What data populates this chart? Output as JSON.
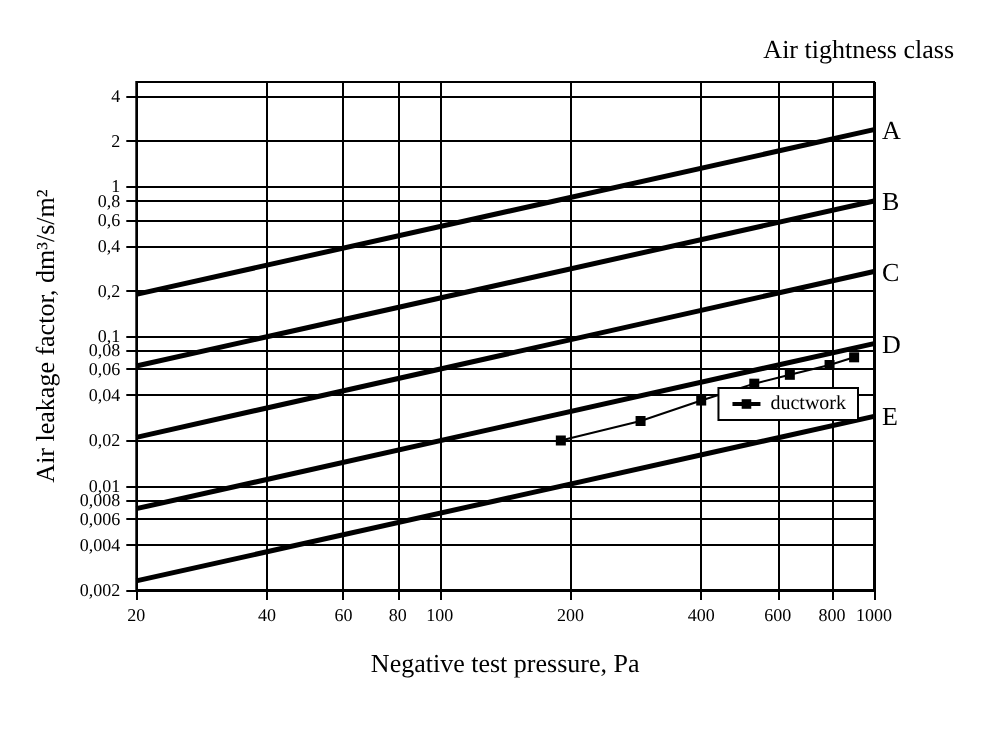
{
  "chart_data": {
    "type": "line",
    "xlabel": "Negative test pressure, Pa",
    "ylabel": "Air leakage factor, dm³/s/m²",
    "legend_title": "Air tightness class",
    "log": "xy",
    "grid": true,
    "legend": "right",
    "xlim": [
      20,
      1000
    ],
    "ylim": [
      0.002,
      5
    ],
    "xticks": [
      20,
      40,
      60,
      80,
      100,
      200,
      400,
      600,
      800,
      1000
    ],
    "yticks": [
      {
        "value": 0.002,
        "label": "0,002"
      },
      {
        "value": 0.004,
        "label": "0,004"
      },
      {
        "value": 0.006,
        "label": "0,006"
      },
      {
        "value": 0.008,
        "label": "0,008"
      },
      {
        "value": 0.01,
        "label": "0,01"
      },
      {
        "value": 0.02,
        "label": "0,02"
      },
      {
        "value": 0.04,
        "label": "0,04"
      },
      {
        "value": 0.06,
        "label": "0,06"
      },
      {
        "value": 0.08,
        "label": "0,08"
      },
      {
        "value": 0.1,
        "label": "0,1"
      },
      {
        "value": 0.2,
        "label": "0,2"
      },
      {
        "value": 0.4,
        "label": "0,4"
      },
      {
        "value": 0.6,
        "label": "0,6"
      },
      {
        "value": 0.8,
        "label": "0,8"
      },
      1,
      2,
      4
    ],
    "series": [
      {
        "name": "A",
        "color": "#000000",
        "x": [
          20,
          1000
        ],
        "values": [
          0.19,
          2.4
        ]
      },
      {
        "name": "B",
        "color": "#000000",
        "x": [
          20,
          1000
        ],
        "values": [
          0.063,
          0.8
        ]
      },
      {
        "name": "C",
        "color": "#000000",
        "x": [
          20,
          1000
        ],
        "values": [
          0.021,
          0.27
        ]
      },
      {
        "name": "D",
        "color": "#000000",
        "x": [
          20,
          1000
        ],
        "values": [
          0.007,
          0.089
        ]
      },
      {
        "name": "E",
        "color": "#000000",
        "x": [
          20,
          1000
        ],
        "values": [
          0.0023,
          0.029
        ]
      },
      {
        "name": "ductwork",
        "color": "#000000",
        "marker": "square",
        "x": [
          190,
          290,
          400,
          530,
          640,
          790,
          900
        ],
        "values": [
          0.02,
          0.027,
          0.037,
          0.048,
          0.055,
          0.064,
          0.072
        ]
      }
    ]
  }
}
